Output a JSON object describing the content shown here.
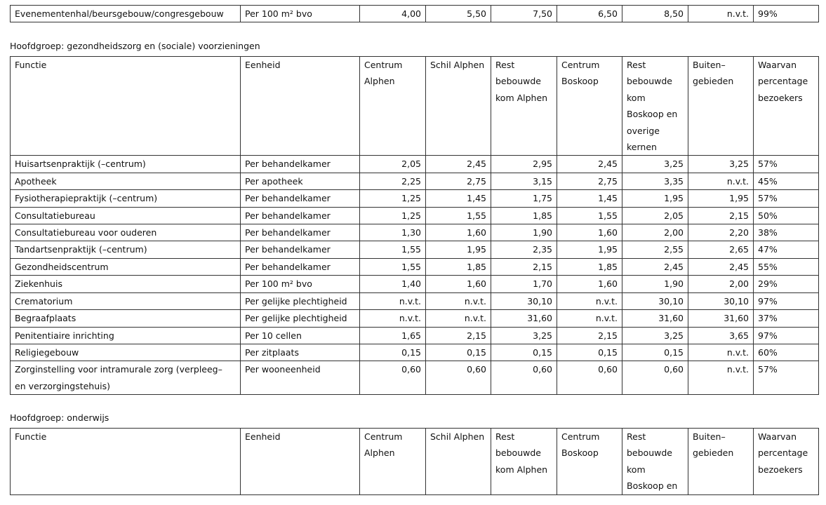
{
  "top_table": {
    "rows": [
      [
        "Evenementenhal/beursgebouw/congresgebouw",
        "Per 100 m² bvo",
        "4,00",
        "5,50",
        "7,50",
        "6,50",
        "8,50",
        "n.v.t.",
        "99%"
      ]
    ]
  },
  "sections": [
    {
      "heading": "Hoofdgroep: gezondheidszorg en (sociale) voorzieningen",
      "header": [
        "Functie",
        "Eenheid",
        "Centrum Alphen",
        "Schil Alphen",
        "Rest bebouwde kom Alphen",
        "Centrum Boskoop",
        "Rest bebouwde kom Boskoop en overige kernen",
        "Buiten–\ngebieden",
        "Waarvan percentage bezoekers"
      ],
      "rows": [
        [
          "Huisartsenpraktijk (–centrum)",
          "Per behandelkamer",
          "2,05",
          "2,45",
          "2,95",
          "2,45",
          "3,25",
          "3,25",
          "57%"
        ],
        [
          "Apotheek",
          "Per apotheek",
          "2,25",
          "2,75",
          "3,15",
          "2,75",
          "3,35",
          "n.v.t.",
          "45%"
        ],
        [
          "Fysiotherapiepraktijk (–centrum)",
          "Per behandelkamer",
          "1,25",
          "1,45",
          "1,75",
          "1,45",
          "1,95",
          "1,95",
          "57%"
        ],
        [
          "Consultatiebureau",
          "Per behandelkamer",
          "1,25",
          "1,55",
          "1,85",
          "1,55",
          "2,05",
          "2,15",
          "50%"
        ],
        [
          "Consultatiebureau voor ouderen",
          "Per behandelkamer",
          "1,30",
          "1,60",
          "1,90",
          "1,60",
          "2,00",
          "2,20",
          "38%"
        ],
        [
          "Tandartsenpraktijk (–centrum)",
          "Per behandelkamer",
          "1,55",
          "1,95",
          "2,35",
          "1,95",
          "2,55",
          "2,65",
          "47%"
        ],
        [
          "Gezondheidscentrum",
          "Per behandelkamer",
          "1,55",
          "1,85",
          "2,15",
          "1,85",
          "2,45",
          "2,45",
          "55%"
        ],
        [
          "Ziekenhuis",
          "Per 100 m² bvo",
          "1,40",
          "1,60",
          "1,70",
          "1,60",
          "1,90",
          "2,00",
          "29%"
        ],
        [
          "Crematorium",
          "Per gelijke plechtigheid",
          "n.v.t.",
          "n.v.t.",
          "30,10",
          "n.v.t.",
          "30,10",
          "30,10",
          "97%"
        ],
        [
          "Begraafplaats",
          "Per gelijke plechtigheid",
          "n.v.t.",
          "n.v.t.",
          "31,60",
          "n.v.t.",
          "31,60",
          "31,60",
          "37%"
        ],
        [
          "Penitentiaire inrichting",
          "Per 10 cellen",
          "1,65",
          "2,15",
          "3,25",
          "2,15",
          "3,25",
          "3,65",
          "97%"
        ],
        [
          "Religiegebouw",
          "Per zitplaats",
          "0,15",
          "0,15",
          "0,15",
          "0,15",
          "0,15",
          "n.v.t.",
          "60%"
        ],
        [
          "Zorginstelling voor intramurale zorg (verpleeg–\nen verzorgingstehuis)",
          "Per wooneenheid",
          "0,60",
          "0,60",
          "0,60",
          "0,60",
          "0,60",
          "n.v.t.",
          "57%"
        ]
      ]
    },
    {
      "heading": "Hoofdgroep: onderwijs",
      "header": [
        "Functie",
        "Eenheid",
        "Centrum Alphen",
        "Schil Alphen",
        "Rest bebouwde kom Alphen",
        "Centrum Boskoop",
        "Rest bebouwde kom Boskoop en",
        "Buiten–\ngebieden",
        "Waarvan percentage bezoekers"
      ],
      "rows": []
    }
  ]
}
